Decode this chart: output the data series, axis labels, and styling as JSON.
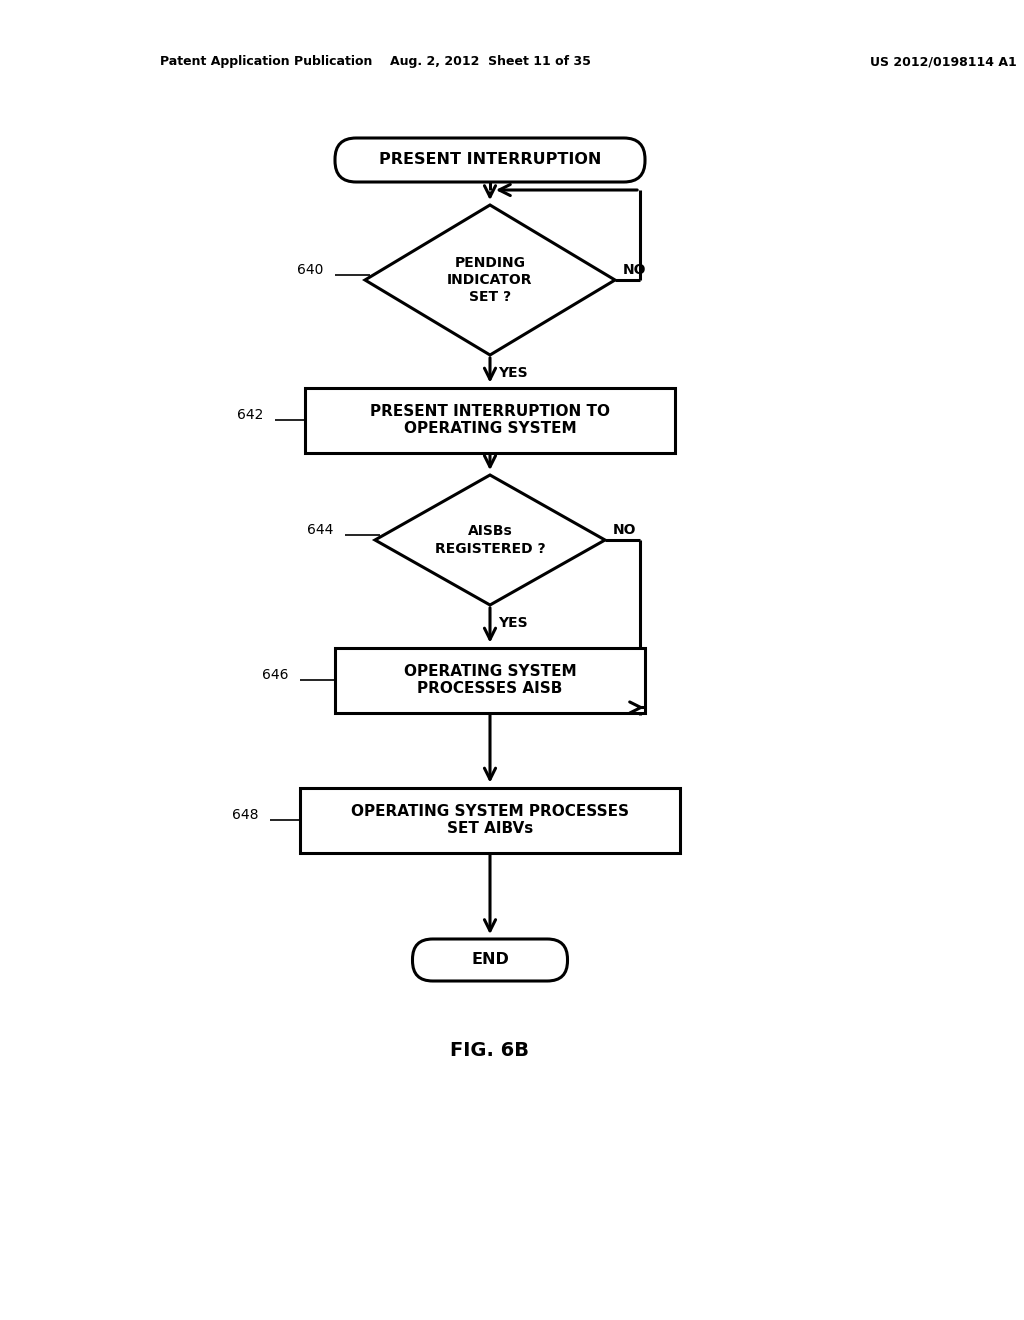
{
  "bg_color": "#ffffff",
  "line_color": "#000000",
  "text_color": "#000000",
  "header_left": "Patent Application Publication",
  "header_mid": "Aug. 2, 2012  Sheet 11 of 35",
  "header_right": "US 2012/0198114 A1",
  "figure_label": "FIG. 6B",
  "start_label": "PRESENT INTERRUPTION",
  "d640_label": "PENDING\nINDICATOR\nSET ?",
  "d640_num": "640",
  "box642_label": "PRESENT INTERRUPTION TO\nOPERATING SYSTEM",
  "box642_num": "642",
  "d644_label": "AISBs\nREGISTERED ?",
  "d644_num": "644",
  "box646_label": "OPERATING SYSTEM\nPROCESSES AISB",
  "box646_num": "646",
  "box648_label": "OPERATING SYSTEM PROCESSES\nSET AIBVs",
  "box648_num": "648",
  "end_label": "END",
  "yes_label": "YES",
  "no_label": "NO"
}
